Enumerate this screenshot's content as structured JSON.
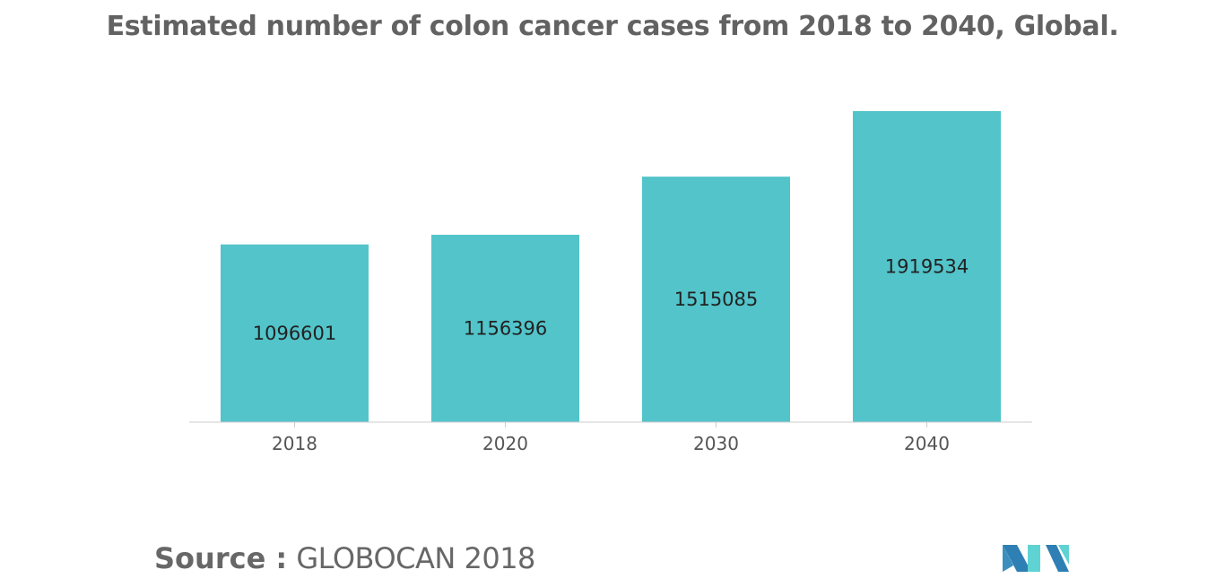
{
  "chart_data": {
    "type": "bar",
    "title": "Estimated number of colon cancer cases from 2018 to 2040, Global.",
    "categories": [
      "2018",
      "2020",
      "2030",
      "2040"
    ],
    "values": [
      1096601,
      1156396,
      1515085,
      1919534
    ],
    "value_labels": [
      "1096601",
      "1156396",
      "1515085",
      "1919534"
    ],
    "xlabel": "",
    "ylabel": "",
    "ylim": [
      0,
      1919534
    ],
    "grid": false,
    "legend": "none",
    "bar_color": "#52c4ca"
  },
  "source": {
    "label": "Source :",
    "value": "GLOBOCAN 2018"
  },
  "logo": {
    "icon": "mordor-intelligence-logo-icon",
    "colors": [
      "#2e7fb3",
      "#5fd3d3"
    ]
  }
}
